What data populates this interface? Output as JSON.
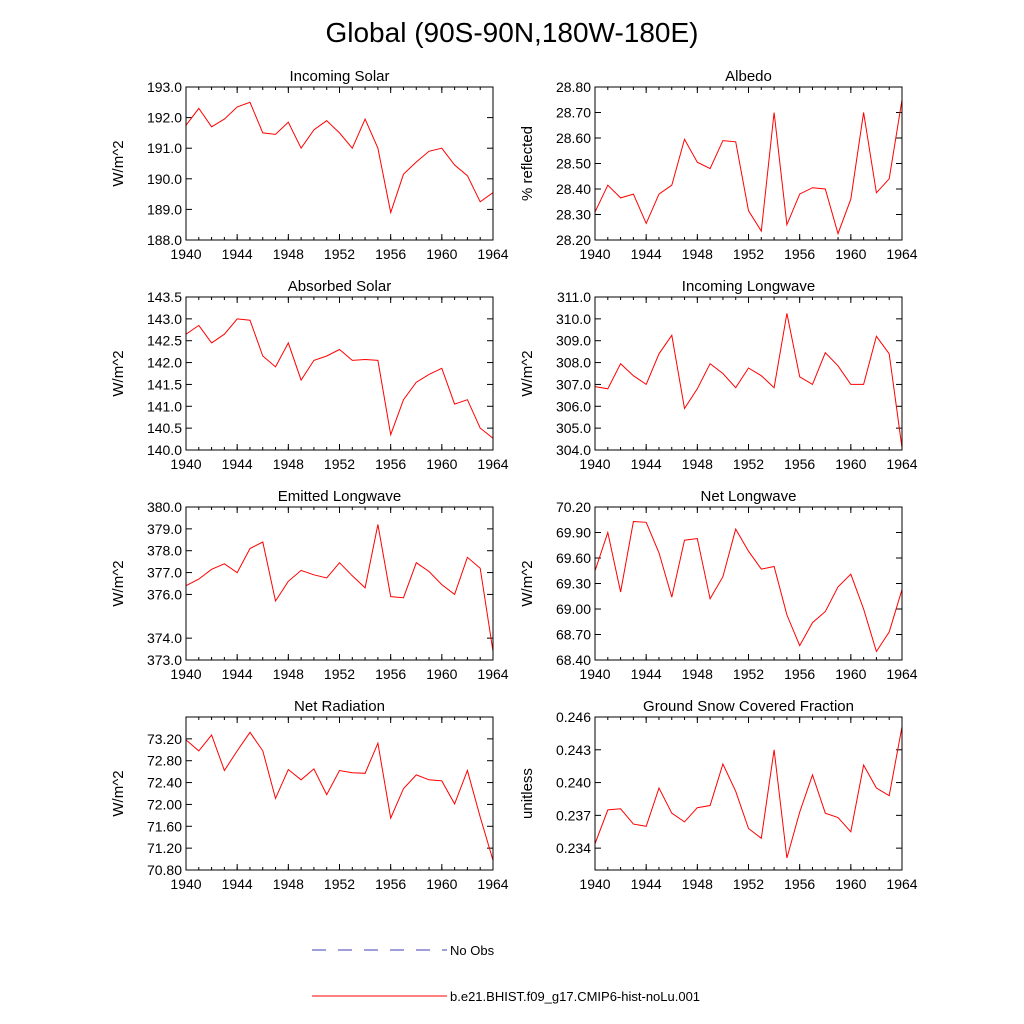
{
  "figure": {
    "title": "Global (90S-90N,180W-180E)",
    "line_color": "#ff0000",
    "obs_color": "#3c3cb4",
    "legend": {
      "obs_label": "No Obs",
      "model_label": "b.e21.BHIST.f09_g17.CMIP6-hist-noLu.001"
    }
  },
  "chart_data": [
    {
      "type": "line",
      "title": "Incoming Solar",
      "ylabel": "W/m^2",
      "x": [
        1940,
        1941,
        1942,
        1943,
        1944,
        1945,
        1946,
        1947,
        1948,
        1949,
        1950,
        1951,
        1952,
        1953,
        1954,
        1955,
        1956,
        1957,
        1958,
        1959,
        1960,
        1961,
        1962,
        1963,
        1964
      ],
      "y": [
        191.75,
        192.3,
        191.7,
        191.95,
        192.35,
        192.5,
        191.5,
        191.45,
        191.85,
        191.0,
        191.6,
        191.9,
        191.5,
        191.0,
        191.95,
        191.0,
        188.9,
        190.15,
        190.55,
        190.9,
        191.0,
        190.45,
        190.1,
        189.25,
        189.55
      ],
      "xlim": [
        1940,
        1964
      ],
      "xticks": [
        "1940",
        "1944",
        "1948",
        "1952",
        "1956",
        "1960",
        "1964"
      ],
      "ylim": [
        188.0,
        193.0
      ],
      "yticks": [
        "188.0",
        "189.0",
        "190.0",
        "191.0",
        "192.0",
        "193.0"
      ],
      "grid": false
    },
    {
      "type": "line",
      "title": "Albedo",
      "ylabel": "% reflected",
      "x": [
        1940,
        1941,
        1942,
        1943,
        1944,
        1945,
        1946,
        1947,
        1948,
        1949,
        1950,
        1951,
        1952,
        1953,
        1954,
        1955,
        1956,
        1957,
        1958,
        1959,
        1960,
        1961,
        1962,
        1963,
        1964
      ],
      "y": [
        28.31,
        28.415,
        28.365,
        28.38,
        28.265,
        28.38,
        28.415,
        28.595,
        28.505,
        28.48,
        28.59,
        28.585,
        28.315,
        28.235,
        28.7,
        28.26,
        28.38,
        28.405,
        28.4,
        28.225,
        28.36,
        28.7,
        28.385,
        28.44,
        28.75
      ],
      "xlim": [
        1940,
        1964
      ],
      "xticks": [
        "1940",
        "1944",
        "1948",
        "1952",
        "1956",
        "1960",
        "1964"
      ],
      "ylim": [
        28.2,
        28.8
      ],
      "yticks": [
        "28.20",
        "28.30",
        "28.40",
        "28.50",
        "28.60",
        "28.70",
        "28.80"
      ],
      "grid": false
    },
    {
      "type": "line",
      "title": "Absorbed Solar",
      "ylabel": "W/m^2",
      "x": [
        1940,
        1941,
        1942,
        1943,
        1944,
        1945,
        1946,
        1947,
        1948,
        1949,
        1950,
        1951,
        1952,
        1953,
        1954,
        1955,
        1956,
        1957,
        1958,
        1959,
        1960,
        1961,
        1962,
        1963,
        1964
      ],
      "y": [
        142.65,
        142.85,
        142.45,
        142.65,
        143.0,
        142.97,
        142.15,
        141.9,
        142.45,
        141.6,
        142.05,
        142.15,
        142.3,
        142.05,
        142.07,
        142.05,
        140.35,
        141.15,
        141.55,
        141.73,
        141.87,
        141.05,
        141.15,
        140.5,
        140.27
      ],
      "xlim": [
        1940,
        1964
      ],
      "xticks": [
        "1940",
        "1944",
        "1948",
        "1952",
        "1956",
        "1960",
        "1964"
      ],
      "ylim": [
        140.0,
        143.5
      ],
      "yticks": [
        "140.0",
        "140.5",
        "141.0",
        "141.5",
        "142.0",
        "142.5",
        "143.0",
        "143.5"
      ],
      "grid": false
    },
    {
      "type": "line",
      "title": "Incoming Longwave",
      "ylabel": "W/m^2",
      "x": [
        1940,
        1941,
        1942,
        1943,
        1944,
        1945,
        1946,
        1947,
        1948,
        1949,
        1950,
        1951,
        1952,
        1953,
        1954,
        1955,
        1956,
        1957,
        1958,
        1959,
        1960,
        1961,
        1962,
        1963,
        1964
      ],
      "y": [
        306.9,
        306.8,
        307.95,
        307.4,
        307.0,
        308.4,
        309.25,
        305.9,
        306.8,
        307.95,
        307.5,
        306.85,
        307.75,
        307.4,
        306.85,
        310.25,
        307.35,
        307.0,
        308.45,
        307.85,
        307.0,
        307.0,
        309.2,
        308.4,
        304.1
      ],
      "xlim": [
        1940,
        1964
      ],
      "xticks": [
        "1940",
        "1944",
        "1948",
        "1952",
        "1956",
        "1960",
        "1964"
      ],
      "ylim": [
        304.0,
        311.0
      ],
      "yticks": [
        "304.0",
        "305.0",
        "306.0",
        "307.0",
        "308.0",
        "309.0",
        "310.0",
        "311.0"
      ],
      "grid": false
    },
    {
      "type": "line",
      "title": "Emitted Longwave",
      "ylabel": "W/m^2",
      "x": [
        1940,
        1941,
        1942,
        1943,
        1944,
        1945,
        1946,
        1947,
        1948,
        1949,
        1950,
        1951,
        1952,
        1953,
        1954,
        1955,
        1956,
        1957,
        1958,
        1959,
        1960,
        1961,
        1962,
        1963,
        1964
      ],
      "y": [
        376.4,
        376.7,
        377.15,
        377.4,
        377.0,
        378.1,
        378.4,
        375.7,
        376.6,
        377.1,
        376.9,
        376.75,
        377.45,
        376.85,
        376.3,
        379.2,
        375.9,
        375.85,
        377.45,
        377.05,
        376.45,
        376.0,
        377.7,
        377.2,
        373.4
      ],
      "xlim": [
        1940,
        1964
      ],
      "xticks": [
        "1940",
        "1944",
        "1948",
        "1952",
        "1956",
        "1960",
        "1964"
      ],
      "ylim": [
        373.0,
        380.0
      ],
      "yticks": [
        "373.0",
        "374.0",
        "376.0",
        "377.0",
        "378.0",
        "379.0",
        "380.0"
      ],
      "grid": false
    },
    {
      "type": "line",
      "title": "Net Longwave",
      "ylabel": "W/m^2",
      "x": [
        1940,
        1941,
        1942,
        1943,
        1944,
        1945,
        1946,
        1947,
        1948,
        1949,
        1950,
        1951,
        1952,
        1953,
        1954,
        1955,
        1956,
        1957,
        1958,
        1959,
        1960,
        1961,
        1962,
        1963,
        1964
      ],
      "y": [
        69.45,
        69.9,
        69.2,
        70.03,
        70.02,
        69.66,
        69.14,
        69.81,
        69.83,
        69.12,
        69.38,
        69.94,
        69.68,
        69.47,
        69.5,
        68.93,
        68.57,
        68.84,
        68.97,
        69.26,
        69.41,
        69.0,
        68.5,
        68.73,
        69.23
      ],
      "xlim": [
        1940,
        1964
      ],
      "xticks": [
        "1940",
        "1944",
        "1948",
        "1952",
        "1956",
        "1960",
        "1964"
      ],
      "ylim": [
        68.4,
        70.2
      ],
      "yticks": [
        "68.40",
        "68.70",
        "69.00",
        "69.30",
        "69.60",
        "69.90",
        "70.20"
      ],
      "grid": false
    },
    {
      "type": "line",
      "title": "Net Radiation",
      "ylabel": "W/m^2",
      "x": [
        1940,
        1941,
        1942,
        1943,
        1944,
        1945,
        1946,
        1947,
        1948,
        1949,
        1950,
        1951,
        1952,
        1953,
        1954,
        1955,
        1956,
        1957,
        1958,
        1959,
        1960,
        1961,
        1962,
        1963,
        1964
      ],
      "y": [
        73.18,
        72.98,
        73.27,
        72.62,
        72.98,
        73.32,
        72.98,
        72.11,
        72.64,
        72.45,
        72.65,
        72.18,
        72.62,
        72.58,
        72.57,
        73.12,
        71.75,
        72.29,
        72.54,
        72.45,
        72.43,
        72.01,
        72.62,
        71.77,
        70.98
      ],
      "xlim": [
        1940,
        1964
      ],
      "xticks": [
        "1940",
        "1944",
        "1948",
        "1952",
        "1956",
        "1960",
        "1964"
      ],
      "ylim": [
        70.8,
        73.6
      ],
      "yticks": [
        "70.80",
        "71.20",
        "71.60",
        "72.00",
        "72.40",
        "72.80",
        "73.20"
      ],
      "grid": false
    },
    {
      "type": "line",
      "title": "Ground Snow Covered Fraction",
      "ylabel": "unitless",
      "x": [
        1940,
        1941,
        1942,
        1943,
        1944,
        1945,
        1946,
        1947,
        1948,
        1949,
        1950,
        1951,
        1952,
        1953,
        1954,
        1955,
        1956,
        1957,
        1958,
        1959,
        1960,
        1961,
        1962,
        1963,
        1964
      ],
      "y": [
        0.2344,
        0.2375,
        0.2376,
        0.2362,
        0.236,
        0.2395,
        0.2372,
        0.2364,
        0.2377,
        0.2379,
        0.2417,
        0.2392,
        0.2358,
        0.2349,
        0.243,
        0.2331,
        0.2373,
        0.2407,
        0.2372,
        0.2368,
        0.2355,
        0.2416,
        0.2395,
        0.2388,
        0.2451
      ],
      "xlim": [
        1940,
        1964
      ],
      "xticks": [
        "1940",
        "1944",
        "1948",
        "1952",
        "1956",
        "1960",
        "1964"
      ],
      "ylim": [
        0.232,
        0.246
      ],
      "yticks": [
        "0.234",
        "0.237",
        "0.240",
        "0.243",
        "0.246"
      ],
      "grid": false
    }
  ]
}
